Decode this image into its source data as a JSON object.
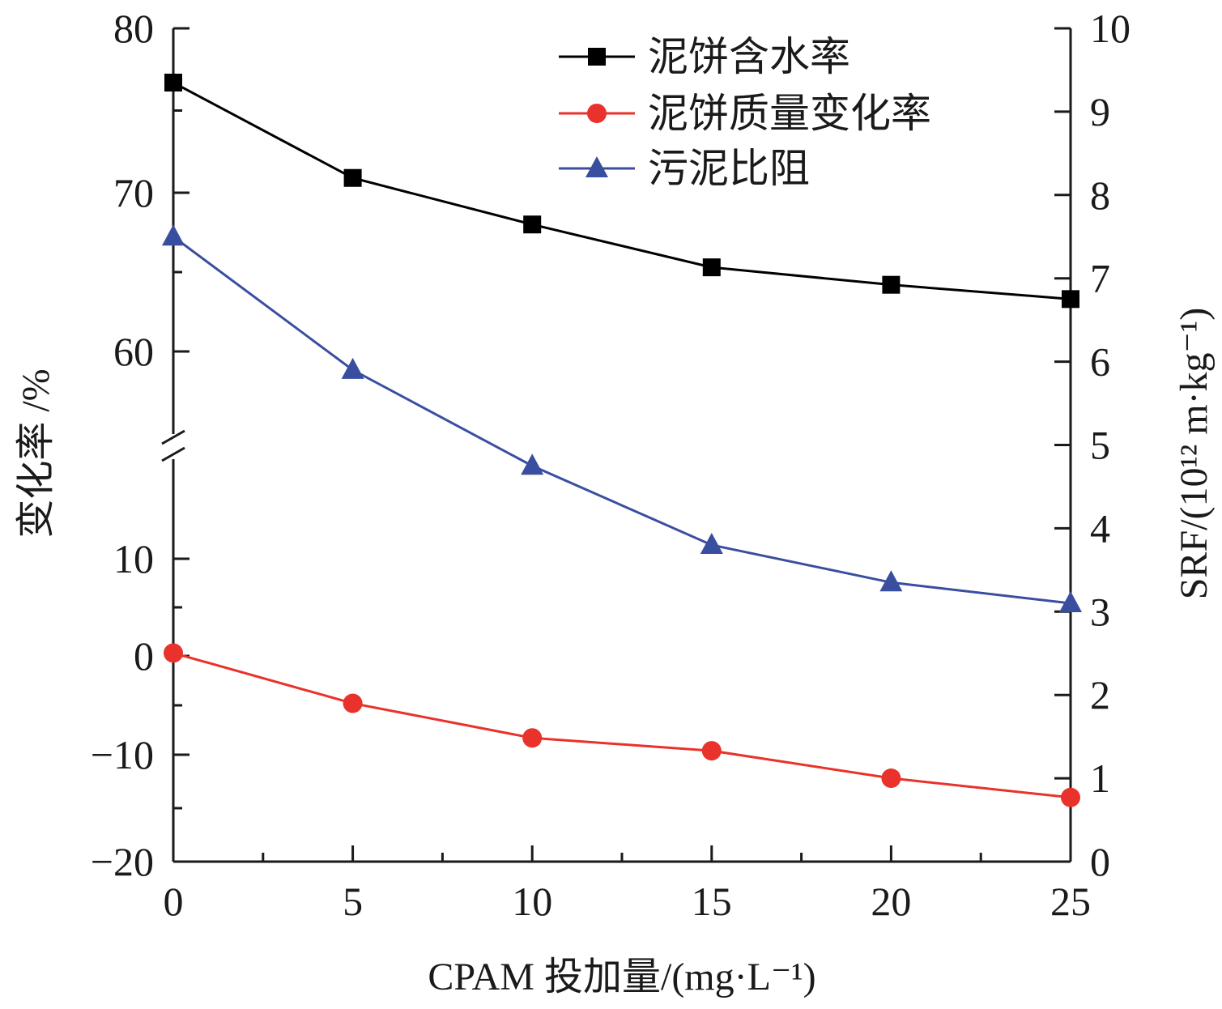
{
  "chart_data": {
    "type": "line",
    "x": [
      0,
      5,
      10,
      15,
      20,
      25
    ],
    "x_ticks": [
      "0",
      "5",
      "10",
      "15",
      "20",
      "25"
    ],
    "xlabel": "CPAM 投加量/(mg·L⁻¹)",
    "xlim": [
      0,
      25
    ],
    "left_axis": {
      "label": "变化率 /%",
      "broken": true,
      "upper_range": [
        55,
        80
      ],
      "lower_range": [
        -20,
        15
      ],
      "ticks": [
        "80",
        "70",
        "60",
        "10",
        "0",
        "−10",
        "−20"
      ]
    },
    "right_axis": {
      "label": "SRF/(10¹² m·kg⁻¹)",
      "ylim": [
        0,
        10
      ],
      "ticks": [
        "10",
        "9",
        "8",
        "7",
        "6",
        "5",
        "4",
        "3",
        "2",
        "1",
        "0"
      ]
    },
    "series": [
      {
        "name": "泥饼含水率",
        "axis": "left",
        "marker": "square",
        "color": "#000000",
        "values": [
          76.7,
          70.9,
          68.0,
          65.3,
          64.2,
          63.3
        ]
      },
      {
        "name": "泥饼质量变化率",
        "axis": "left",
        "marker": "circle",
        "color": "#e8322b",
        "values": [
          0.3,
          -4.8,
          -8.3,
          -9.6,
          -12.2,
          -14.0
        ]
      },
      {
        "name": "污泥比阻",
        "axis": "right",
        "marker": "triangle",
        "color": "#3a4ea0",
        "values": [
          7.5,
          5.9,
          4.75,
          3.8,
          3.35,
          3.1
        ]
      }
    ],
    "legend_position": "top-right",
    "grid": false
  }
}
